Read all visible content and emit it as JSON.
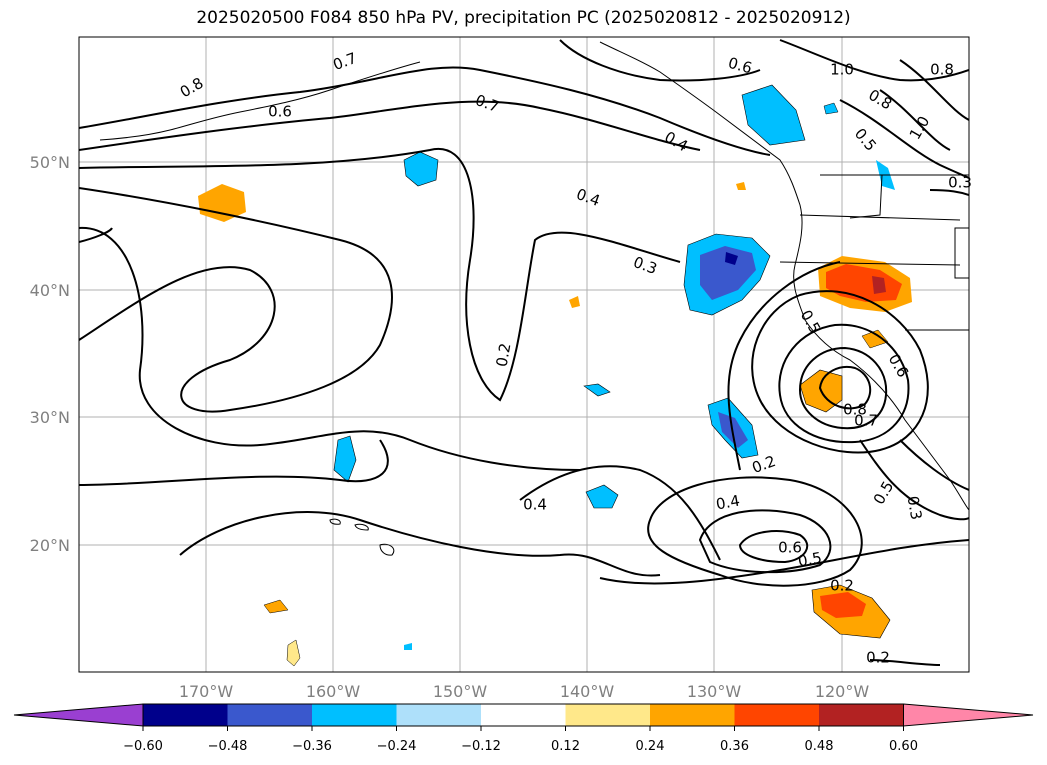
{
  "title": "2025020500 F084 850 hPa PV, precipitation PC (2025020812 - 2025020912)",
  "lat_labels": [
    "50°N",
    "40°N",
    "30°N",
    "20°N"
  ],
  "lon_labels": [
    "170°W",
    "160°W",
    "150°W",
    "140°W",
    "130°W",
    "120°W"
  ],
  "contour_labels": [
    "0.8",
    "0.6",
    "0.7",
    "0.7",
    "0.6",
    "1.0",
    "0.8",
    "0.8",
    "1.0",
    "0.4",
    "0.5",
    "0.3",
    "0.4",
    "0.3",
    "0.2",
    "0.5",
    "0.6",
    "0.8",
    "0.7",
    "0.2",
    "0.4",
    "0.5",
    "0.4",
    "0.3",
    "0.6",
    "0.5",
    "0.2",
    "0.2"
  ],
  "colorbar": {
    "colors": [
      "#9a3fd1",
      "#00008b",
      "#3a58cd",
      "#00bfff",
      "#aee0fa",
      "#ffffff",
      "#ffe88a",
      "#ffa500",
      "#ff4500",
      "#b22222",
      "#ff86a8"
    ],
    "tick_labels": [
      "−0.60",
      "−0.48",
      "−0.36",
      "−0.24",
      "−0.12",
      "0.12",
      "0.24",
      "0.36",
      "0.48",
      "0.60"
    ]
  }
}
